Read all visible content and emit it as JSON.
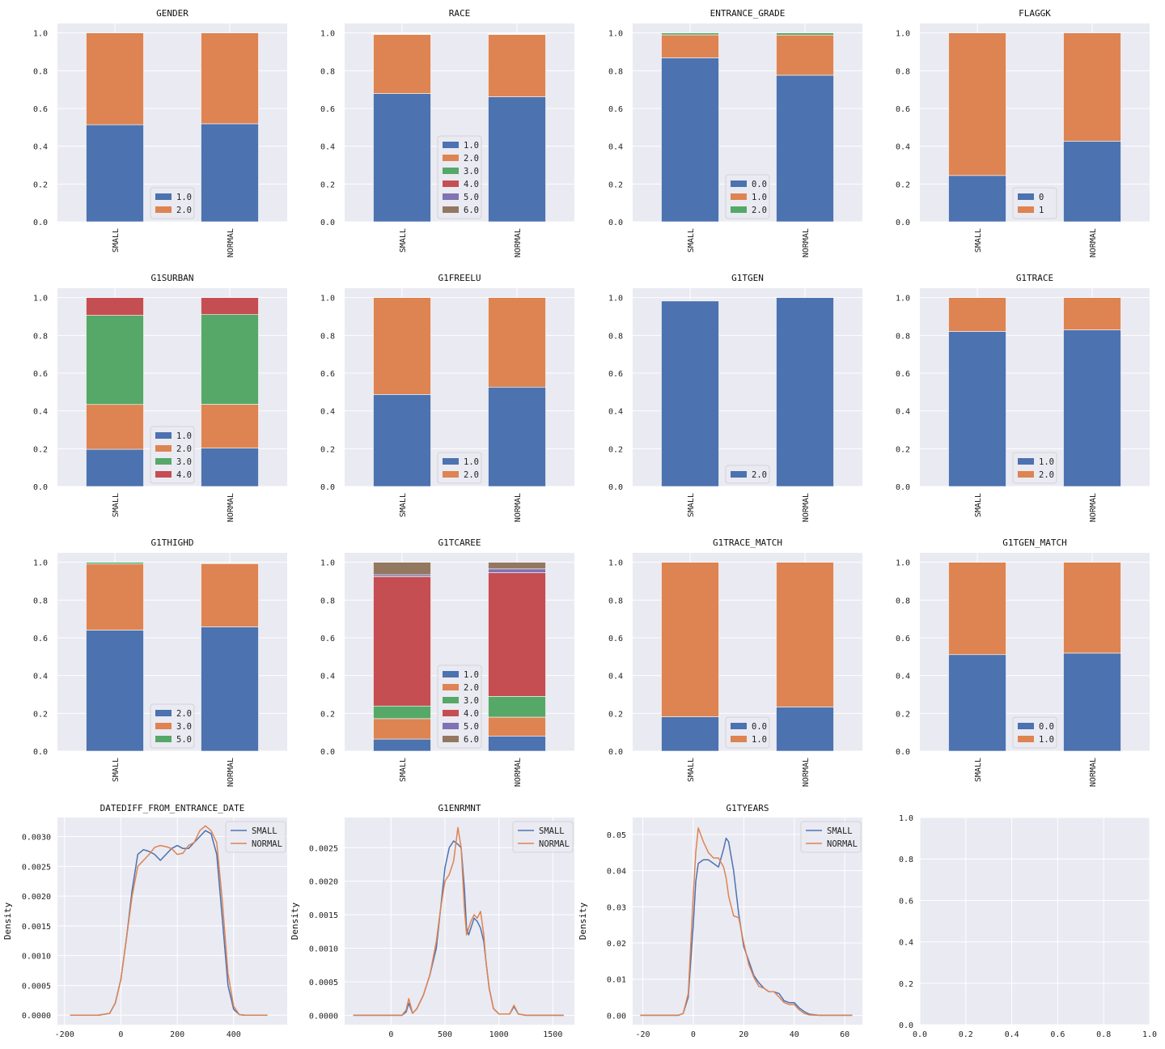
{
  "figure": {
    "background": "#ffffff",
    "panel_bg": "#eaeaf2",
    "grid": "#ffffff"
  },
  "palette": [
    "#4c72b0",
    "#dd8452",
    "#55a868",
    "#c44e52",
    "#8172b3",
    "#937860"
  ],
  "chart_data": [
    {
      "type": "bar",
      "stacked": true,
      "title": "GENDER",
      "categories": [
        "SMALL",
        "NORMAL"
      ],
      "ylim": [
        0,
        1.05
      ],
      "yticks": [
        "0.0",
        "0.2",
        "0.4",
        "0.6",
        "0.8",
        "1.0"
      ],
      "legend": "lower center",
      "series": [
        {
          "name": "1.0",
          "values": [
            0.514,
            0.519
          ]
        },
        {
          "name": "2.0",
          "values": [
            0.486,
            0.481
          ]
        }
      ]
    },
    {
      "type": "bar",
      "stacked": true,
      "title": "RACE",
      "categories": [
        "SMALL",
        "NORMAL"
      ],
      "ylim": [
        0,
        1.05
      ],
      "yticks": [
        "0.0",
        "0.2",
        "0.4",
        "0.6",
        "0.8",
        "1.0"
      ],
      "legend": "lower center",
      "series": [
        {
          "name": "1.0",
          "values": [
            0.679,
            0.662
          ]
        },
        {
          "name": "2.0",
          "values": [
            0.313,
            0.33
          ]
        },
        {
          "name": "3.0",
          "values": [
            0.002,
            0.002
          ]
        },
        {
          "name": "4.0",
          "values": [
            0.002,
            0.002
          ]
        },
        {
          "name": "5.0",
          "values": [
            0.002,
            0.002
          ]
        },
        {
          "name": "6.0",
          "values": [
            0.002,
            0.002
          ]
        }
      ]
    },
    {
      "type": "bar",
      "stacked": true,
      "title": "ENTRANCE_GRADE",
      "categories": [
        "SMALL",
        "NORMAL"
      ],
      "ylim": [
        0,
        1.05
      ],
      "yticks": [
        "0.0",
        "0.2",
        "0.4",
        "0.6",
        "0.8",
        "1.0"
      ],
      "legend": "lower center",
      "series": [
        {
          "name": "0.0",
          "values": [
            0.868,
            0.776
          ]
        },
        {
          "name": "1.0",
          "values": [
            0.122,
            0.213
          ]
        },
        {
          "name": "2.0",
          "values": [
            0.01,
            0.011
          ]
        }
      ]
    },
    {
      "type": "bar",
      "stacked": true,
      "title": "FLAGGK",
      "categories": [
        "SMALL",
        "NORMAL"
      ],
      "ylim": [
        0,
        1.05
      ],
      "yticks": [
        "0.0",
        "0.2",
        "0.4",
        "0.6",
        "0.8",
        "1.0"
      ],
      "legend": "lower center",
      "series": [
        {
          "name": "0",
          "values": [
            0.245,
            0.427
          ]
        },
        {
          "name": "1",
          "values": [
            0.755,
            0.573
          ]
        }
      ]
    },
    {
      "type": "bar",
      "stacked": true,
      "title": "G1SURBAN",
      "categories": [
        "SMALL",
        "NORMAL"
      ],
      "ylim": [
        0,
        1.05
      ],
      "yticks": [
        "0.0",
        "0.2",
        "0.4",
        "0.6",
        "0.8",
        "1.0"
      ],
      "legend": "lower center",
      "series": [
        {
          "name": "1.0",
          "values": [
            0.197,
            0.203
          ]
        },
        {
          "name": "2.0",
          "values": [
            0.237,
            0.232
          ]
        },
        {
          "name": "3.0",
          "values": [
            0.472,
            0.475
          ]
        },
        {
          "name": "4.0",
          "values": [
            0.094,
            0.09
          ]
        }
      ]
    },
    {
      "type": "bar",
      "stacked": true,
      "title": "G1FREELU",
      "categories": [
        "SMALL",
        "NORMAL"
      ],
      "ylim": [
        0,
        1.05
      ],
      "yticks": [
        "0.0",
        "0.2",
        "0.4",
        "0.6",
        "0.8",
        "1.0"
      ],
      "legend": "lower center",
      "series": [
        {
          "name": "1.0",
          "values": [
            0.487,
            0.526
          ]
        },
        {
          "name": "2.0",
          "values": [
            0.513,
            0.474
          ]
        }
      ]
    },
    {
      "type": "bar",
      "stacked": true,
      "title": "G1TGEN",
      "categories": [
        "SMALL",
        "NORMAL"
      ],
      "ylim": [
        0,
        1.05
      ],
      "yticks": [
        "0.0",
        "0.2",
        "0.4",
        "0.6",
        "0.8",
        "1.0"
      ],
      "legend": "lower center",
      "series": [
        {
          "name": "2.0",
          "values": [
            0.982,
            1.0
          ]
        }
      ]
    },
    {
      "type": "bar",
      "stacked": true,
      "title": "G1TRACE",
      "categories": [
        "SMALL",
        "NORMAL"
      ],
      "ylim": [
        0,
        1.05
      ],
      "yticks": [
        "0.0",
        "0.2",
        "0.4",
        "0.6",
        "0.8",
        "1.0"
      ],
      "legend": "lower center",
      "series": [
        {
          "name": "1.0",
          "values": [
            0.821,
            0.829
          ]
        },
        {
          "name": "2.0",
          "values": [
            0.179,
            0.171
          ]
        }
      ]
    },
    {
      "type": "bar",
      "stacked": true,
      "title": "G1THIGHD",
      "categories": [
        "SMALL",
        "NORMAL"
      ],
      "ylim": [
        0,
        1.05
      ],
      "yticks": [
        "0.0",
        "0.2",
        "0.4",
        "0.6",
        "0.8",
        "1.0"
      ],
      "legend": "lower center",
      "series": [
        {
          "name": "2.0",
          "values": [
            0.641,
            0.658
          ]
        },
        {
          "name": "3.0",
          "values": [
            0.35,
            0.335
          ]
        },
        {
          "name": "5.0",
          "values": [
            0.009,
            0.003
          ]
        }
      ]
    },
    {
      "type": "bar",
      "stacked": true,
      "title": "G1TCAREE",
      "categories": [
        "SMALL",
        "NORMAL"
      ],
      "ylim": [
        0,
        1.05
      ],
      "yticks": [
        "0.0",
        "0.2",
        "0.4",
        "0.6",
        "0.8",
        "1.0"
      ],
      "legend": "lower center",
      "series": [
        {
          "name": "1.0",
          "values": [
            0.064,
            0.08
          ]
        },
        {
          "name": "2.0",
          "values": [
            0.108,
            0.1
          ]
        },
        {
          "name": "3.0",
          "values": [
            0.067,
            0.11
          ]
        },
        {
          "name": "4.0",
          "values": [
            0.685,
            0.655
          ]
        },
        {
          "name": "5.0",
          "values": [
            0.01,
            0.02
          ]
        },
        {
          "name": "6.0",
          "values": [
            0.066,
            0.035
          ]
        }
      ]
    },
    {
      "type": "bar",
      "stacked": true,
      "title": "G1TRACE_MATCH",
      "categories": [
        "SMALL",
        "NORMAL"
      ],
      "ylim": [
        0,
        1.05
      ],
      "yticks": [
        "0.0",
        "0.2",
        "0.4",
        "0.6",
        "0.8",
        "1.0"
      ],
      "legend": "lower center",
      "series": [
        {
          "name": "0.0",
          "values": [
            0.182,
            0.234
          ]
        },
        {
          "name": "1.0",
          "values": [
            0.818,
            0.766
          ]
        }
      ]
    },
    {
      "type": "bar",
      "stacked": true,
      "title": "G1TGEN_MATCH",
      "categories": [
        "SMALL",
        "NORMAL"
      ],
      "ylim": [
        0,
        1.05
      ],
      "yticks": [
        "0.0",
        "0.2",
        "0.4",
        "0.6",
        "0.8",
        "1.0"
      ],
      "legend": "lower center",
      "series": [
        {
          "name": "0.0",
          "values": [
            0.511,
            0.519
          ]
        },
        {
          "name": "1.0",
          "values": [
            0.489,
            0.481
          ]
        }
      ]
    },
    {
      "type": "line",
      "kind": "density",
      "title": "DATEDIFF_FROM_ENTRANCE_DATE",
      "ylabel": "Density",
      "xlim": [
        -225,
        590
      ],
      "ylim": [
        -0.00016,
        0.00332
      ],
      "xticks": [
        -200,
        0,
        200,
        400
      ],
      "xtick_labels": [
        "-200",
        "0",
        "200",
        "400"
      ],
      "yticks": [
        0,
        0.0005,
        0.001,
        0.0015,
        0.002,
        0.0025,
        0.003
      ],
      "ytick_labels": [
        "0.0000",
        "0.0005",
        "0.0010",
        "0.0015",
        "0.0020",
        "0.0025",
        "0.0030"
      ],
      "legend": "upper right",
      "series": [
        {
          "name": "SMALL",
          "x": [
            -180,
            -80,
            -40,
            -20,
            0,
            20,
            40,
            60,
            80,
            100,
            120,
            140,
            160,
            180,
            200,
            220,
            240,
            260,
            280,
            300,
            320,
            340,
            360,
            380,
            400,
            420,
            440,
            520
          ],
          "y": [
            0,
            0,
            3e-05,
            0.0002,
            0.0006,
            0.0013,
            0.0021,
            0.0027,
            0.00278,
            0.00275,
            0.0027,
            0.0026,
            0.0027,
            0.0028,
            0.00285,
            0.0028,
            0.0028,
            0.0029,
            0.003,
            0.0031,
            0.00305,
            0.0027,
            0.0016,
            0.0005,
            0.0001,
            1e-05,
            0,
            0
          ]
        },
        {
          "name": "NORMAL",
          "x": [
            -180,
            -80,
            -40,
            -20,
            0,
            20,
            40,
            60,
            80,
            100,
            120,
            140,
            160,
            180,
            200,
            220,
            240,
            260,
            280,
            300,
            320,
            340,
            360,
            380,
            400,
            420,
            440,
            520
          ],
          "y": [
            0,
            0,
            3e-05,
            0.0002,
            0.0006,
            0.0013,
            0.002,
            0.0025,
            0.0026,
            0.0027,
            0.00282,
            0.00285,
            0.00283,
            0.0028,
            0.0027,
            0.00272,
            0.00285,
            0.0029,
            0.0031,
            0.00318,
            0.0031,
            0.0029,
            0.0019,
            0.0007,
            0.00015,
            1e-05,
            0,
            0
          ]
        }
      ]
    },
    {
      "type": "line",
      "kind": "density",
      "title": "G1ENRMNT",
      "ylabel": "Density",
      "xlim": [
        -430,
        1700
      ],
      "ylim": [
        -0.00014,
        0.00295
      ],
      "xticks": [
        0,
        500,
        1000,
        1500
      ],
      "xtick_labels": [
        "0",
        "500",
        "1000",
        "1500"
      ],
      "yticks": [
        0,
        0.0005,
        0.001,
        0.0015,
        0.002,
        0.0025
      ],
      "ytick_labels": [
        "0.0000",
        "0.0005",
        "0.0010",
        "0.0015",
        "0.0020",
        "0.0025"
      ],
      "legend": "upper right",
      "series": [
        {
          "name": "SMALL",
          "x": [
            -350,
            100,
            140,
            165,
            200,
            240,
            300,
            360,
            420,
            460,
            500,
            540,
            580,
            620,
            650,
            680,
            700,
            720,
            740,
            770,
            800,
            830,
            860,
            880,
            910,
            950,
            1000,
            1100,
            1140,
            1180,
            1250,
            1600
          ],
          "y": [
            0,
            0,
            5e-05,
            0.00018,
            3e-05,
            0.0001,
            0.0003,
            0.0006,
            0.001,
            0.0016,
            0.0022,
            0.0025,
            0.0026,
            0.00255,
            0.0025,
            0.0019,
            0.0013,
            0.0012,
            0.0013,
            0.00145,
            0.0014,
            0.0013,
            0.0011,
            0.0008,
            0.0004,
            0.0001,
            2e-05,
            2e-05,
            0.00013,
            2e-05,
            0,
            0
          ]
        },
        {
          "name": "NORMAL",
          "x": [
            -350,
            100,
            140,
            165,
            200,
            240,
            300,
            360,
            420,
            460,
            500,
            540,
            580,
            620,
            650,
            680,
            700,
            720,
            740,
            770,
            800,
            830,
            860,
            880,
            910,
            950,
            1000,
            1100,
            1140,
            1180,
            1250,
            1600
          ],
          "y": [
            0,
            0,
            8e-05,
            0.00025,
            3e-05,
            0.0001,
            0.0003,
            0.0006,
            0.0011,
            0.0016,
            0.002,
            0.0021,
            0.0023,
            0.0028,
            0.0025,
            0.0016,
            0.0012,
            0.0013,
            0.0014,
            0.0015,
            0.00145,
            0.00155,
            0.0012,
            0.0008,
            0.0004,
            0.0001,
            2e-05,
            2e-05,
            0.00015,
            2e-05,
            0,
            0
          ]
        }
      ]
    },
    {
      "type": "line",
      "kind": "density",
      "title": "G1TYEARS",
      "ylabel": "Density",
      "xlim": [
        -24,
        67
      ],
      "ylim": [
        -0.0026,
        0.0547
      ],
      "xticks": [
        -20,
        0,
        20,
        40,
        60
      ],
      "xtick_labels": [
        "-20",
        "0",
        "20",
        "40",
        "60"
      ],
      "yticks": [
        0,
        0.01,
        0.02,
        0.03,
        0.04,
        0.05
      ],
      "ytick_labels": [
        "0.00",
        "0.01",
        "0.02",
        "0.03",
        "0.04",
        "0.05"
      ],
      "legend": "upper right",
      "series": [
        {
          "name": "SMALL",
          "x": [
            -21,
            -6,
            -4,
            -2,
            0,
            1,
            2,
            4,
            6,
            8,
            10,
            12,
            13,
            14,
            16,
            18,
            20,
            22,
            24,
            26,
            28,
            30,
            32,
            34,
            36,
            38,
            40,
            42,
            44,
            46,
            50,
            63
          ],
          "y": [
            0,
            0,
            0.0005,
            0.005,
            0.025,
            0.037,
            0.042,
            0.043,
            0.043,
            0.042,
            0.041,
            0.046,
            0.049,
            0.048,
            0.04,
            0.028,
            0.019,
            0.015,
            0.011,
            0.009,
            0.0075,
            0.0065,
            0.0065,
            0.006,
            0.004,
            0.0035,
            0.0035,
            0.002,
            0.001,
            0.0003,
            0,
            0
          ]
        },
        {
          "name": "NORMAL",
          "x": [
            -21,
            -6,
            -4,
            -2,
            0,
            1,
            2,
            4,
            6,
            8,
            10,
            12,
            13,
            14,
            16,
            18,
            20,
            22,
            24,
            26,
            28,
            30,
            32,
            34,
            36,
            38,
            40,
            42,
            44,
            46,
            50,
            63
          ],
          "y": [
            0,
            0,
            0.0005,
            0.006,
            0.033,
            0.045,
            0.0518,
            0.048,
            0.045,
            0.0435,
            0.0435,
            0.041,
            0.038,
            0.033,
            0.0275,
            0.027,
            0.02,
            0.014,
            0.0105,
            0.008,
            0.0075,
            0.0065,
            0.0065,
            0.005,
            0.0035,
            0.003,
            0.003,
            0.0015,
            0.0005,
            0.0001,
            0,
            0
          ]
        }
      ]
    },
    {
      "type": "line",
      "kind": "empty",
      "title": "",
      "xlim": [
        0,
        1
      ],
      "ylim": [
        0,
        1
      ],
      "xticks": [
        0,
        0.2,
        0.4,
        0.6,
        0.8,
        1.0
      ],
      "xtick_labels": [
        "0.0",
        "0.2",
        "0.4",
        "0.6",
        "0.8",
        "1.0"
      ],
      "yticks": [
        0,
        0.2,
        0.4,
        0.6,
        0.8,
        1.0
      ],
      "ytick_labels": [
        "0.0",
        "0.2",
        "0.4",
        "0.6",
        "0.8",
        "1.0"
      ],
      "series": []
    }
  ]
}
